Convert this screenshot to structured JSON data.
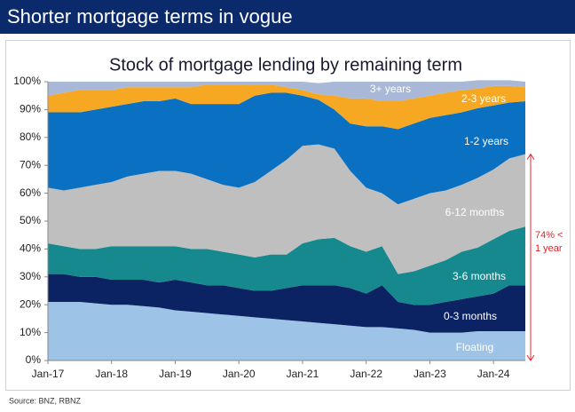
{
  "header": {
    "title": "Shorter mortgage terms in vogue"
  },
  "source": "Source: BNZ, RBNZ",
  "chart_data": {
    "type": "stacked_area",
    "title": "Stock of mortgage lending by remaining term",
    "categories": [
      "Jan-17",
      null,
      null,
      null,
      "Jan-18",
      null,
      null,
      null,
      "Jan-19",
      null,
      null,
      null,
      "Jan-20",
      null,
      null,
      null,
      "Jan-21",
      null,
      null,
      null,
      "Jan-22",
      null,
      null,
      null,
      "Jan-23",
      null,
      null,
      null,
      "Jan-24",
      null,
      null
    ],
    "series": [
      {
        "name": "Floating",
        "color": "#9dc3e6",
        "values": [
          21,
          21,
          21,
          20.5,
          20,
          20,
          19.5,
          19,
          18,
          17.5,
          17,
          16.5,
          16,
          15.5,
          15,
          14.5,
          14,
          13.5,
          13,
          12.5,
          12,
          12,
          11.5,
          11,
          10,
          10,
          10,
          10.5,
          10.5,
          10.5,
          10.5
        ]
      },
      {
        "name": "0-3 months",
        "color": "#0b2363",
        "values": [
          10,
          10,
          9,
          9.5,
          9,
          9,
          9.5,
          9,
          11,
          10.5,
          10,
          10.5,
          10,
          9.5,
          10,
          11.5,
          13,
          13.5,
          14,
          13.5,
          12,
          15,
          9.5,
          9,
          10,
          11,
          12,
          12.5,
          13.5,
          16.5,
          16.5
        ]
      },
      {
        "name": "3-6 months",
        "color": "#16898f",
        "values": [
          11,
          10,
          10,
          10,
          12,
          12,
          12,
          13,
          12,
          12,
          13,
          12,
          12,
          12,
          13,
          12,
          15,
          16.5,
          17,
          15,
          15,
          14,
          10,
          12,
          14,
          15,
          17,
          17.5,
          19.5,
          19.5,
          21
        ]
      },
      {
        "name": "6-12 months",
        "color": "#bfbfbf",
        "values": [
          20,
          20,
          22,
          23,
          23,
          25,
          26,
          27,
          27,
          27,
          25,
          24,
          24,
          27,
          30,
          34,
          35,
          34,
          32,
          27,
          23,
          19,
          25,
          26,
          26,
          25,
          24,
          25,
          25,
          26,
          26
        ]
      },
      {
        "name": "1-2 years",
        "color": "#0a70c2",
        "values": [
          27,
          28,
          27,
          27,
          27,
          26,
          26,
          25,
          26,
          25,
          27,
          29,
          30,
          31,
          28,
          24,
          18,
          16,
          14,
          17,
          22,
          24,
          27,
          27,
          27,
          27,
          26,
          25,
          23,
          20,
          19
        ]
      },
      {
        "name": "2-3 years",
        "color": "#f7a823",
        "values": [
          6,
          7,
          8,
          7,
          6,
          6,
          5,
          5,
          4,
          6,
          7,
          7,
          7,
          4,
          3,
          2,
          2,
          2,
          5,
          9,
          10,
          9,
          10,
          9,
          8,
          8,
          8,
          7,
          7,
          6,
          5
        ]
      },
      {
        "name": "3+ years",
        "color": "#a8b8d6",
        "values": [
          5,
          4,
          3,
          3,
          3,
          2,
          2,
          2,
          2,
          2,
          1,
          1,
          1,
          1,
          1,
          2,
          3,
          4,
          5,
          6,
          6,
          7,
          7,
          6,
          5,
          4,
          3,
          3,
          2,
          2,
          2
        ]
      }
    ],
    "ylim": [
      0,
      100
    ],
    "yticks": [
      {
        "value": 0,
        "label": "0%"
      },
      {
        "value": 10,
        "label": "10%"
      },
      {
        "value": 20,
        "label": "20%"
      },
      {
        "value": 30,
        "label": "30%"
      },
      {
        "value": 40,
        "label": "40%"
      },
      {
        "value": 50,
        "label": "50%"
      },
      {
        "value": 60,
        "label": "60%"
      },
      {
        "value": 70,
        "label": "70%"
      },
      {
        "value": 80,
        "label": "80%"
      },
      {
        "value": 90,
        "label": "90%"
      },
      {
        "value": 100,
        "label": "100%"
      }
    ],
    "annotation": {
      "lines": [
        "74% <",
        "1 year"
      ],
      "value": 74,
      "color": "#e3242b"
    }
  }
}
